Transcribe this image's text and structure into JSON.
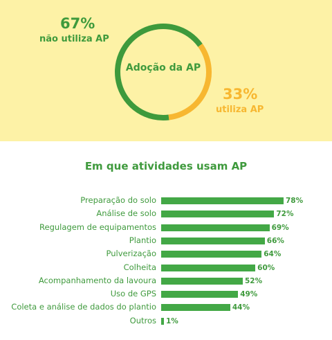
{
  "adoption": {
    "center_label": "Adoção da AP",
    "segments": [
      {
        "key": "nao",
        "percent_label": "67%",
        "label": "não utiliza AP",
        "value": 67,
        "color": "#3e9a3c"
      },
      {
        "key": "sim",
        "percent_label": "33%",
        "label": "utiliza AP",
        "value": 33,
        "color": "#f7b731"
      }
    ]
  },
  "chart_data": {
    "type": "bar",
    "title": "Em que atividades usam AP",
    "categories": [
      "Preparação do solo",
      "Análise de solo",
      "Regulagem de equipamentos",
      "Plantio",
      "Pulverização",
      "Colheita",
      "Acompanhamento da lavoura",
      "Uso de GPS",
      "Coleta e análise de dados do plantio",
      "Outros"
    ],
    "values": [
      78,
      72,
      69,
      66,
      64,
      60,
      52,
      49,
      44,
      1
    ],
    "value_labels": [
      "78%",
      "72%",
      "69%",
      "66%",
      "64%",
      "60%",
      "52%",
      "49%",
      "44%",
      "1%"
    ],
    "bar_color": "#43a846"
  }
}
